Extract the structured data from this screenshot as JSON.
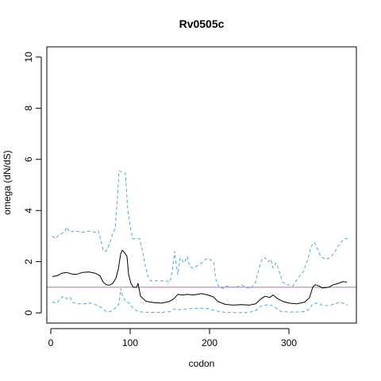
{
  "chart_data": {
    "type": "line",
    "title": "Rv0505c",
    "xlabel": "codon",
    "ylabel": "omega (dN/dS)",
    "xlim": [
      -5,
      385
    ],
    "ylim": [
      -0.4,
      10.4
    ],
    "xticks": [
      0,
      100,
      200,
      300
    ],
    "yticks": [
      0,
      2,
      4,
      6,
      8,
      10
    ],
    "grid": false,
    "reference_line": {
      "y": 1,
      "color": "#c266c2"
    },
    "series": [
      {
        "style": "solid",
        "color": "#000000",
        "points": [
          [
            2,
            1.42
          ],
          [
            8,
            1.45
          ],
          [
            14,
            1.55
          ],
          [
            20,
            1.58
          ],
          [
            26,
            1.52
          ],
          [
            32,
            1.5
          ],
          [
            40,
            1.58
          ],
          [
            48,
            1.6
          ],
          [
            56,
            1.55
          ],
          [
            62,
            1.45
          ],
          [
            66,
            1.2
          ],
          [
            70,
            1.1
          ],
          [
            74,
            1.08
          ],
          [
            78,
            1.15
          ],
          [
            82,
            1.35
          ],
          [
            85,
            1.7
          ],
          [
            88,
            2.3
          ],
          [
            90,
            2.45
          ],
          [
            93,
            2.35
          ],
          [
            96,
            2.2
          ],
          [
            98,
            1.5
          ],
          [
            101,
            1.15
          ],
          [
            104,
            1.0
          ],
          [
            108,
            1.0
          ],
          [
            110,
            1.15
          ],
          [
            113,
            0.65
          ],
          [
            120,
            0.45
          ],
          [
            130,
            0.4
          ],
          [
            140,
            0.38
          ],
          [
            150,
            0.45
          ],
          [
            155,
            0.55
          ],
          [
            160,
            0.72
          ],
          [
            166,
            0.7
          ],
          [
            172,
            0.72
          ],
          [
            180,
            0.7
          ],
          [
            190,
            0.75
          ],
          [
            198,
            0.7
          ],
          [
            205,
            0.62
          ],
          [
            210,
            0.45
          ],
          [
            220,
            0.33
          ],
          [
            230,
            0.3
          ],
          [
            240,
            0.32
          ],
          [
            250,
            0.3
          ],
          [
            258,
            0.35
          ],
          [
            265,
            0.55
          ],
          [
            270,
            0.65
          ],
          [
            276,
            0.6
          ],
          [
            280,
            0.7
          ],
          [
            286,
            0.55
          ],
          [
            292,
            0.45
          ],
          [
            300,
            0.38
          ],
          [
            310,
            0.35
          ],
          [
            320,
            0.42
          ],
          [
            326,
            0.6
          ],
          [
            330,
            1.0
          ],
          [
            333,
            1.1
          ],
          [
            338,
            1.05
          ],
          [
            342,
            0.97
          ],
          [
            350,
            1.0
          ],
          [
            356,
            1.1
          ],
          [
            362,
            1.15
          ],
          [
            368,
            1.22
          ],
          [
            373,
            1.2
          ]
        ]
      },
      {
        "style": "dashed",
        "color": "#4aa6e8",
        "points": [
          [
            2,
            3.0
          ],
          [
            6,
            2.9
          ],
          [
            10,
            3.05
          ],
          [
            14,
            3.1
          ],
          [
            18,
            3.2
          ],
          [
            20,
            3.35
          ],
          [
            24,
            3.15
          ],
          [
            30,
            3.2
          ],
          [
            40,
            3.15
          ],
          [
            50,
            3.2
          ],
          [
            55,
            3.15
          ],
          [
            60,
            3.2
          ],
          [
            63,
            2.85
          ],
          [
            66,
            2.45
          ],
          [
            69,
            2.4
          ],
          [
            72,
            2.55
          ],
          [
            75,
            2.8
          ],
          [
            78,
            3.1
          ],
          [
            81,
            3.3
          ],
          [
            84,
            4.5
          ],
          [
            86,
            5.55
          ],
          [
            90,
            5.5
          ],
          [
            94,
            5.45
          ],
          [
            97,
            4.0
          ],
          [
            100,
            3.4
          ],
          [
            103,
            2.9
          ],
          [
            108,
            2.9
          ],
          [
            112,
            2.9
          ],
          [
            115,
            2.5
          ],
          [
            118,
            2.0
          ],
          [
            122,
            1.45
          ],
          [
            126,
            1.25
          ],
          [
            135,
            1.25
          ],
          [
            145,
            1.25
          ],
          [
            150,
            1.2
          ],
          [
            153,
            1.6
          ],
          [
            156,
            2.4
          ],
          [
            158,
            1.9
          ],
          [
            160,
            1.5
          ],
          [
            163,
            2.15
          ],
          [
            168,
            1.95
          ],
          [
            172,
            2.2
          ],
          [
            175,
            1.8
          ],
          [
            180,
            1.75
          ],
          [
            190,
            1.95
          ],
          [
            195,
            2.1
          ],
          [
            200,
            2.1
          ],
          [
            205,
            2.0
          ],
          [
            208,
            1.3
          ],
          [
            212,
            1.0
          ],
          [
            218,
            0.95
          ],
          [
            222,
            1.05
          ],
          [
            228,
            1.0
          ],
          [
            234,
            1.0
          ],
          [
            240,
            1.1
          ],
          [
            245,
            1.0
          ],
          [
            252,
            0.95
          ],
          [
            258,
            1.2
          ],
          [
            262,
            1.7
          ],
          [
            266,
            2.1
          ],
          [
            270,
            2.15
          ],
          [
            274,
            2.0
          ],
          [
            277,
            2.1
          ],
          [
            280,
            1.75
          ],
          [
            284,
            1.95
          ],
          [
            288,
            1.6
          ],
          [
            292,
            1.2
          ],
          [
            298,
            1.1
          ],
          [
            305,
            1.05
          ],
          [
            310,
            1.3
          ],
          [
            318,
            1.6
          ],
          [
            324,
            2.1
          ],
          [
            328,
            2.6
          ],
          [
            332,
            2.75
          ],
          [
            336,
            2.5
          ],
          [
            340,
            2.2
          ],
          [
            346,
            2.1
          ],
          [
            352,
            2.15
          ],
          [
            358,
            2.4
          ],
          [
            364,
            2.7
          ],
          [
            370,
            2.9
          ],
          [
            374,
            2.9
          ]
        ]
      },
      {
        "style": "dashed",
        "color": "#4aa6e8",
        "points": [
          [
            2,
            0.42
          ],
          [
            8,
            0.38
          ],
          [
            12,
            0.55
          ],
          [
            16,
            0.65
          ],
          [
            20,
            0.55
          ],
          [
            24,
            0.62
          ],
          [
            28,
            0.4
          ],
          [
            34,
            0.35
          ],
          [
            42,
            0.35
          ],
          [
            50,
            0.38
          ],
          [
            58,
            0.3
          ],
          [
            64,
            0.2
          ],
          [
            70,
            0.05
          ],
          [
            76,
            0.06
          ],
          [
            82,
            0.2
          ],
          [
            86,
            0.35
          ],
          [
            88,
            0.95
          ],
          [
            90,
            0.7
          ],
          [
            94,
            0.45
          ],
          [
            98,
            0.4
          ],
          [
            102,
            0.25
          ],
          [
            106,
            0.12
          ],
          [
            110,
            0.05
          ],
          [
            120,
            0.02
          ],
          [
            130,
            0.02
          ],
          [
            140,
            0.02
          ],
          [
            150,
            0.05
          ],
          [
            156,
            0.15
          ],
          [
            162,
            0.12
          ],
          [
            170,
            0.15
          ],
          [
            180,
            0.17
          ],
          [
            190,
            0.18
          ],
          [
            198,
            0.17
          ],
          [
            205,
            0.1
          ],
          [
            212,
            0.05
          ],
          [
            220,
            0.02
          ],
          [
            230,
            0.01
          ],
          [
            240,
            0.01
          ],
          [
            250,
            0.02
          ],
          [
            258,
            0.08
          ],
          [
            264,
            0.25
          ],
          [
            270,
            0.3
          ],
          [
            276,
            0.32
          ],
          [
            282,
            0.22
          ],
          [
            290,
            0.05
          ],
          [
            300,
            0.03
          ],
          [
            310,
            0.03
          ],
          [
            320,
            0.05
          ],
          [
            326,
            0.15
          ],
          [
            330,
            0.35
          ],
          [
            336,
            0.38
          ],
          [
            342,
            0.3
          ],
          [
            350,
            0.28
          ],
          [
            358,
            0.35
          ],
          [
            364,
            0.42
          ],
          [
            370,
            0.35
          ],
          [
            374,
            0.3
          ]
        ]
      }
    ]
  }
}
